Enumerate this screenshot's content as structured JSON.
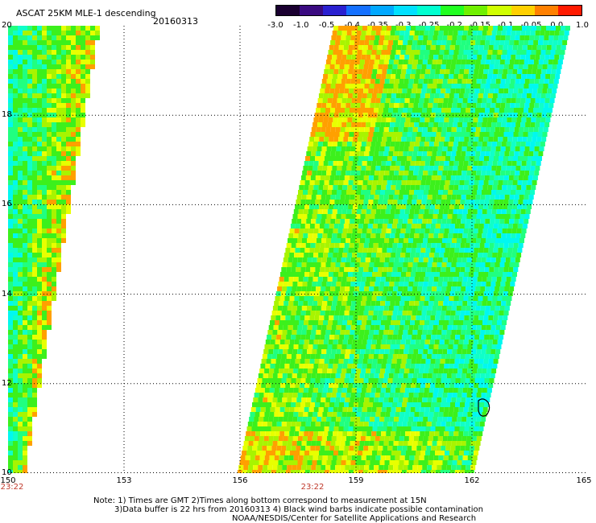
{
  "header": {
    "title": "ASCAT 25KM MLE-1 descending",
    "date": "20160313"
  },
  "colorbar": {
    "labels": [
      "-3.0",
      "-1.0",
      "-0.5",
      "-0.4",
      "-0.35",
      "-0.3",
      "-0.25",
      "-0.2",
      "-0.15",
      "-0.1",
      "-0.05",
      "0.0",
      "1.0"
    ],
    "colors": [
      "#1a0030",
      "#3a0a80",
      "#2a20d0",
      "#1470ff",
      "#00a8ff",
      "#00e0ff",
      "#00ffd0",
      "#20ff20",
      "#70f000",
      "#d0ff00",
      "#ffd000",
      "#ff8000",
      "#ff1a00"
    ]
  },
  "map": {
    "lat_labels": [
      "20",
      "18",
      "16",
      "14",
      "12",
      "10"
    ],
    "lon_labels": [
      "150",
      "153",
      "156",
      "159",
      "162",
      "165"
    ],
    "time_labels": [
      "23:22",
      "23:22"
    ],
    "grid": "dotted"
  },
  "notes": {
    "line1": "Note: 1) Times are GMT 2)Times along bottom correspond to measurement at 15N",
    "line2": "3)Data buffer is 22 hrs from 20160313 4) Black wind barbs indicate possible contamination",
    "line3": "NOAA/NESDIS/Center for Satellite Applications and Research"
  }
}
